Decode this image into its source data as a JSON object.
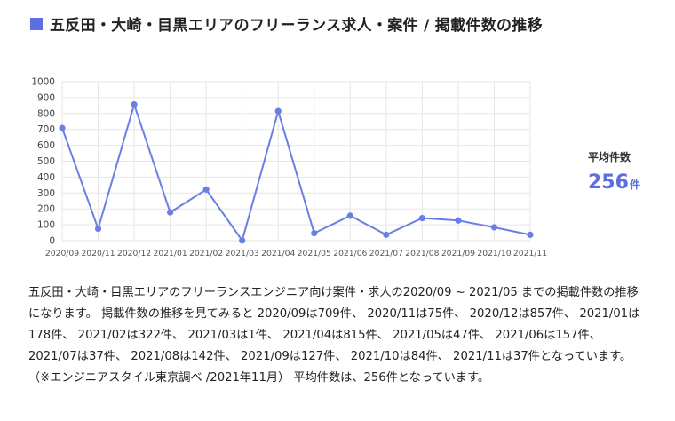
{
  "header": {
    "title": "五反田・大崎・目黒エリアのフリーランス求人・案件 / 掲載件数の推移"
  },
  "average": {
    "label": "平均件数",
    "value": "256",
    "unit": "件"
  },
  "description": "五反田・大崎・目黒エリアのフリーランスエンジニア向け案件・求人の2020/09 ~ 2021/05 までの掲載件数の推移になります。 掲載件数の推移を見てみると 2020/09は709件、 2020/11は75件、 2020/12は857件、 2021/01は178件、 2021/02は322件、 2021/03は1件、 2021/04は815件、 2021/05は47件、 2021/06は157件、 2021/07は37件、 2021/08は142件、 2021/09は127件、 2021/10は84件、 2021/11は37件となっています。 （※エンジニアスタイル東京調べ /2021年11月） 平均件数は、256件となっています。",
  "colors": {
    "accent": "#5b6fe0",
    "line": "#6b7fe3",
    "grid": "#e6e6e6"
  },
  "chart_data": {
    "type": "line",
    "categories": [
      "2020/09",
      "2020/11",
      "2020/12",
      "2021/01",
      "2021/02",
      "2021/03",
      "2021/04",
      "2021/05",
      "2021/06",
      "2021/07",
      "2021/08",
      "2021/09",
      "2021/10",
      "2021/11"
    ],
    "values": [
      709,
      75,
      857,
      178,
      322,
      1,
      815,
      47,
      157,
      37,
      142,
      127,
      84,
      37
    ],
    "yticks": [
      0,
      100,
      200,
      300,
      400,
      500,
      600,
      700,
      800,
      900,
      1000
    ],
    "ylim": [
      0,
      1000
    ],
    "grid": true,
    "title": "",
    "xlabel": "",
    "ylabel": ""
  }
}
